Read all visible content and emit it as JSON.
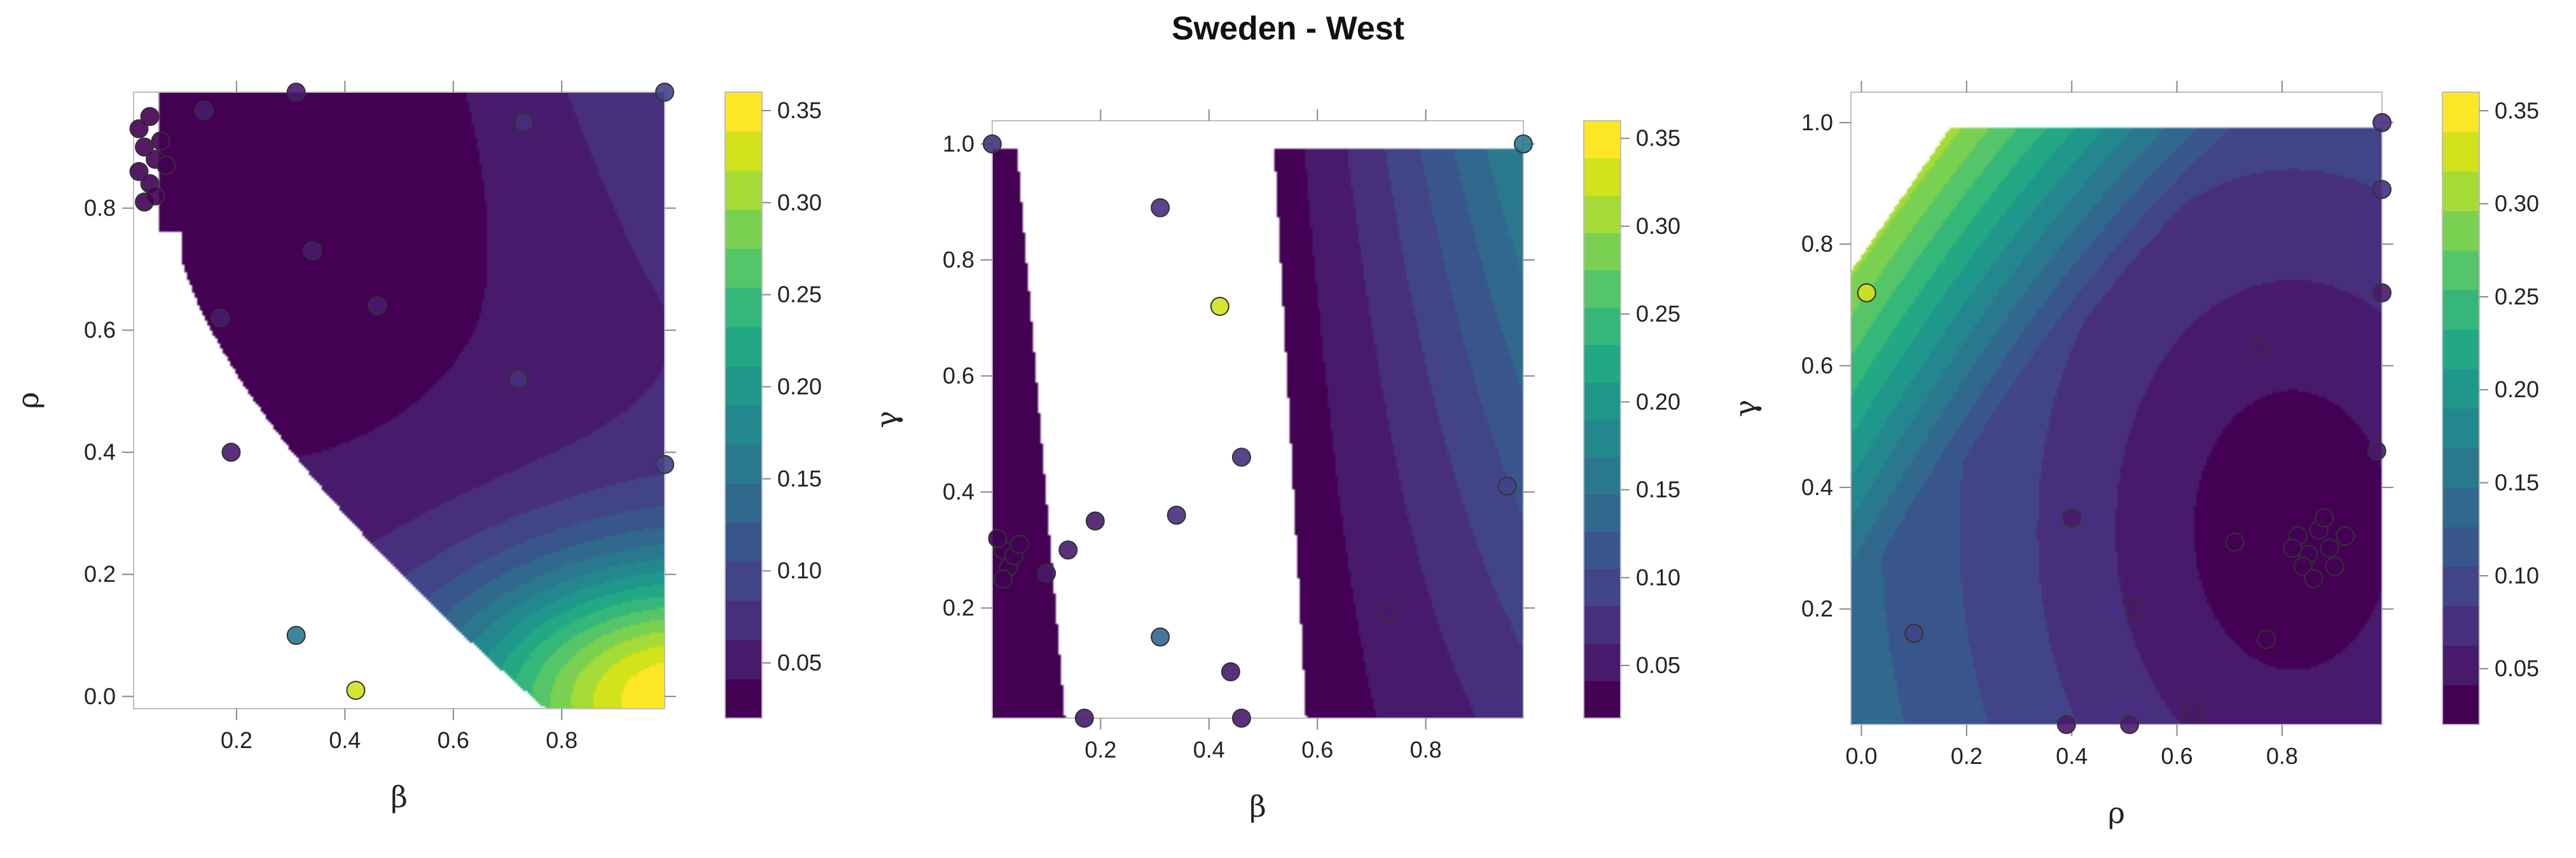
{
  "title": "Sweden - West",
  "colormap": [
    "#440154",
    "#481a6c",
    "#472f7d",
    "#414487",
    "#39568c",
    "#31688e",
    "#2a788e",
    "#23888e",
    "#1f988b",
    "#22a884",
    "#35b779",
    "#54c568",
    "#7ad151",
    "#a5db36",
    "#d2e21b",
    "#fde725"
  ],
  "colorbar_ticks": [
    "0.05",
    "0.10",
    "0.15",
    "0.20",
    "0.25",
    "0.30",
    "0.35"
  ],
  "chart_data": [
    {
      "type": "contour",
      "xlabel": "β",
      "ylabel": "ρ",
      "xlim": [
        0.01,
        0.99
      ],
      "ylim": [
        -0.02,
        0.99
      ],
      "xticks": [
        "0.2",
        "0.4",
        "0.6",
        "0.8"
      ],
      "yticks": [
        "0.0",
        "0.2",
        "0.4",
        "0.6",
        "0.8"
      ],
      "colorbar_range": [
        0.02,
        0.36
      ],
      "points": [
        {
          "x": 0.02,
          "y": 0.86,
          "v": 0.03
        },
        {
          "x": 0.03,
          "y": 0.9,
          "v": 0.03
        },
        {
          "x": 0.04,
          "y": 0.84,
          "v": 0.03
        },
        {
          "x": 0.05,
          "y": 0.88,
          "v": 0.03
        },
        {
          "x": 0.03,
          "y": 0.81,
          "v": 0.03
        },
        {
          "x": 0.06,
          "y": 0.91,
          "v": 0.03
        },
        {
          "x": 0.04,
          "y": 0.95,
          "v": 0.03
        },
        {
          "x": 0.02,
          "y": 0.93,
          "v": 0.03
        },
        {
          "x": 0.05,
          "y": 0.82,
          "v": 0.03
        },
        {
          "x": 0.07,
          "y": 0.87,
          "v": 0.03
        },
        {
          "x": 0.14,
          "y": 0.96,
          "v": 0.05
        },
        {
          "x": 0.31,
          "y": 0.99,
          "v": 0.05
        },
        {
          "x": 0.34,
          "y": 0.73,
          "v": 0.05
        },
        {
          "x": 0.46,
          "y": 0.64,
          "v": 0.05
        },
        {
          "x": 0.73,
          "y": 0.94,
          "v": 0.07
        },
        {
          "x": 0.99,
          "y": 0.99,
          "v": 0.1
        },
        {
          "x": 0.72,
          "y": 0.52,
          "v": 0.07
        },
        {
          "x": 0.99,
          "y": 0.38,
          "v": 0.1
        },
        {
          "x": 0.19,
          "y": 0.4,
          "v": 0.05
        },
        {
          "x": 0.17,
          "y": 0.62,
          "v": 0.05
        },
        {
          "x": 0.31,
          "y": 0.1,
          "v": 0.15
        },
        {
          "x": 0.42,
          "y": 0.01,
          "v": 0.33
        }
      ]
    },
    {
      "type": "contour",
      "xlabel": "β",
      "ylabel": "γ",
      "xlim": [
        0.0,
        0.98
      ],
      "ylim": [
        0.01,
        1.04
      ],
      "xticks": [
        "0.2",
        "0.4",
        "0.6",
        "0.8"
      ],
      "yticks": [
        "0.2",
        "0.4",
        "0.6",
        "0.8",
        "1.0"
      ],
      "colorbar_range": [
        0.02,
        0.36
      ],
      "points": [
        {
          "x": 0.31,
          "y": 0.89,
          "v": 0.07
        },
        {
          "x": 0.42,
          "y": 0.72,
          "v": 0.33
        },
        {
          "x": 0.46,
          "y": 0.46,
          "v": 0.07
        },
        {
          "x": 0.34,
          "y": 0.36,
          "v": 0.07
        },
        {
          "x": 0.19,
          "y": 0.35,
          "v": 0.05
        },
        {
          "x": 0.14,
          "y": 0.3,
          "v": 0.05
        },
        {
          "x": 0.1,
          "y": 0.26,
          "v": 0.05
        },
        {
          "x": 0.31,
          "y": 0.15,
          "v": 0.13
        },
        {
          "x": 0.44,
          "y": 0.09,
          "v": 0.05
        },
        {
          "x": 0.17,
          "y": 0.01,
          "v": 0.05
        },
        {
          "x": 0.46,
          "y": 0.01,
          "v": 0.05
        },
        {
          "x": 0.0,
          "y": 1.0,
          "v": 0.07
        },
        {
          "x": 0.02,
          "y": 0.3,
          "v": 0.04
        },
        {
          "x": 0.03,
          "y": 0.27,
          "v": 0.04
        },
        {
          "x": 0.01,
          "y": 0.32,
          "v": 0.04
        },
        {
          "x": 0.04,
          "y": 0.29,
          "v": 0.04
        },
        {
          "x": 0.05,
          "y": 0.31,
          "v": 0.04
        },
        {
          "x": 0.02,
          "y": 0.25,
          "v": 0.04
        },
        {
          "x": 0.98,
          "y": 1.0,
          "v": 0.15
        },
        {
          "x": 0.73,
          "y": 0.19,
          "v": 0.05
        },
        {
          "x": 0.95,
          "y": 0.41,
          "v": 0.1
        }
      ]
    },
    {
      "type": "contour",
      "xlabel": "ρ",
      "ylabel": "γ",
      "xlim": [
        -0.02,
        0.99
      ],
      "ylim": [
        0.01,
        1.05
      ],
      "xticks": [
        "0.0",
        "0.2",
        "0.4",
        "0.6",
        "0.8"
      ],
      "yticks": [
        "0.2",
        "0.4",
        "0.6",
        "0.8",
        "1.0"
      ],
      "colorbar_range": [
        0.02,
        0.36
      ],
      "points": [
        {
          "x": 0.01,
          "y": 0.72,
          "v": 0.33
        },
        {
          "x": 0.99,
          "y": 1.0,
          "v": 0.07
        },
        {
          "x": 0.4,
          "y": 0.35,
          "v": 0.06
        },
        {
          "x": 0.1,
          "y": 0.16,
          "v": 0.1
        },
        {
          "x": 0.76,
          "y": 0.63,
          "v": 0.06
        },
        {
          "x": 0.52,
          "y": 0.2,
          "v": 0.05
        },
        {
          "x": 0.77,
          "y": 0.15,
          "v": 0.04
        },
        {
          "x": 0.71,
          "y": 0.31,
          "v": 0.04
        },
        {
          "x": 0.83,
          "y": 0.32,
          "v": 0.04
        },
        {
          "x": 0.85,
          "y": 0.29,
          "v": 0.04
        },
        {
          "x": 0.87,
          "y": 0.33,
          "v": 0.04
        },
        {
          "x": 0.84,
          "y": 0.27,
          "v": 0.04
        },
        {
          "x": 0.89,
          "y": 0.3,
          "v": 0.04
        },
        {
          "x": 0.82,
          "y": 0.3,
          "v": 0.04
        },
        {
          "x": 0.86,
          "y": 0.25,
          "v": 0.04
        },
        {
          "x": 0.9,
          "y": 0.27,
          "v": 0.04
        },
        {
          "x": 0.88,
          "y": 0.35,
          "v": 0.04
        },
        {
          "x": 0.92,
          "y": 0.32,
          "v": 0.04
        },
        {
          "x": 0.99,
          "y": 0.89,
          "v": 0.07
        },
        {
          "x": 0.99,
          "y": 0.72,
          "v": 0.06
        },
        {
          "x": 0.98,
          "y": 0.46,
          "v": 0.05
        },
        {
          "x": 0.39,
          "y": 0.01,
          "v": 0.05
        },
        {
          "x": 0.63,
          "y": 0.03,
          "v": 0.05
        },
        {
          "x": 0.51,
          "y": 0.01,
          "v": 0.05
        }
      ]
    }
  ]
}
